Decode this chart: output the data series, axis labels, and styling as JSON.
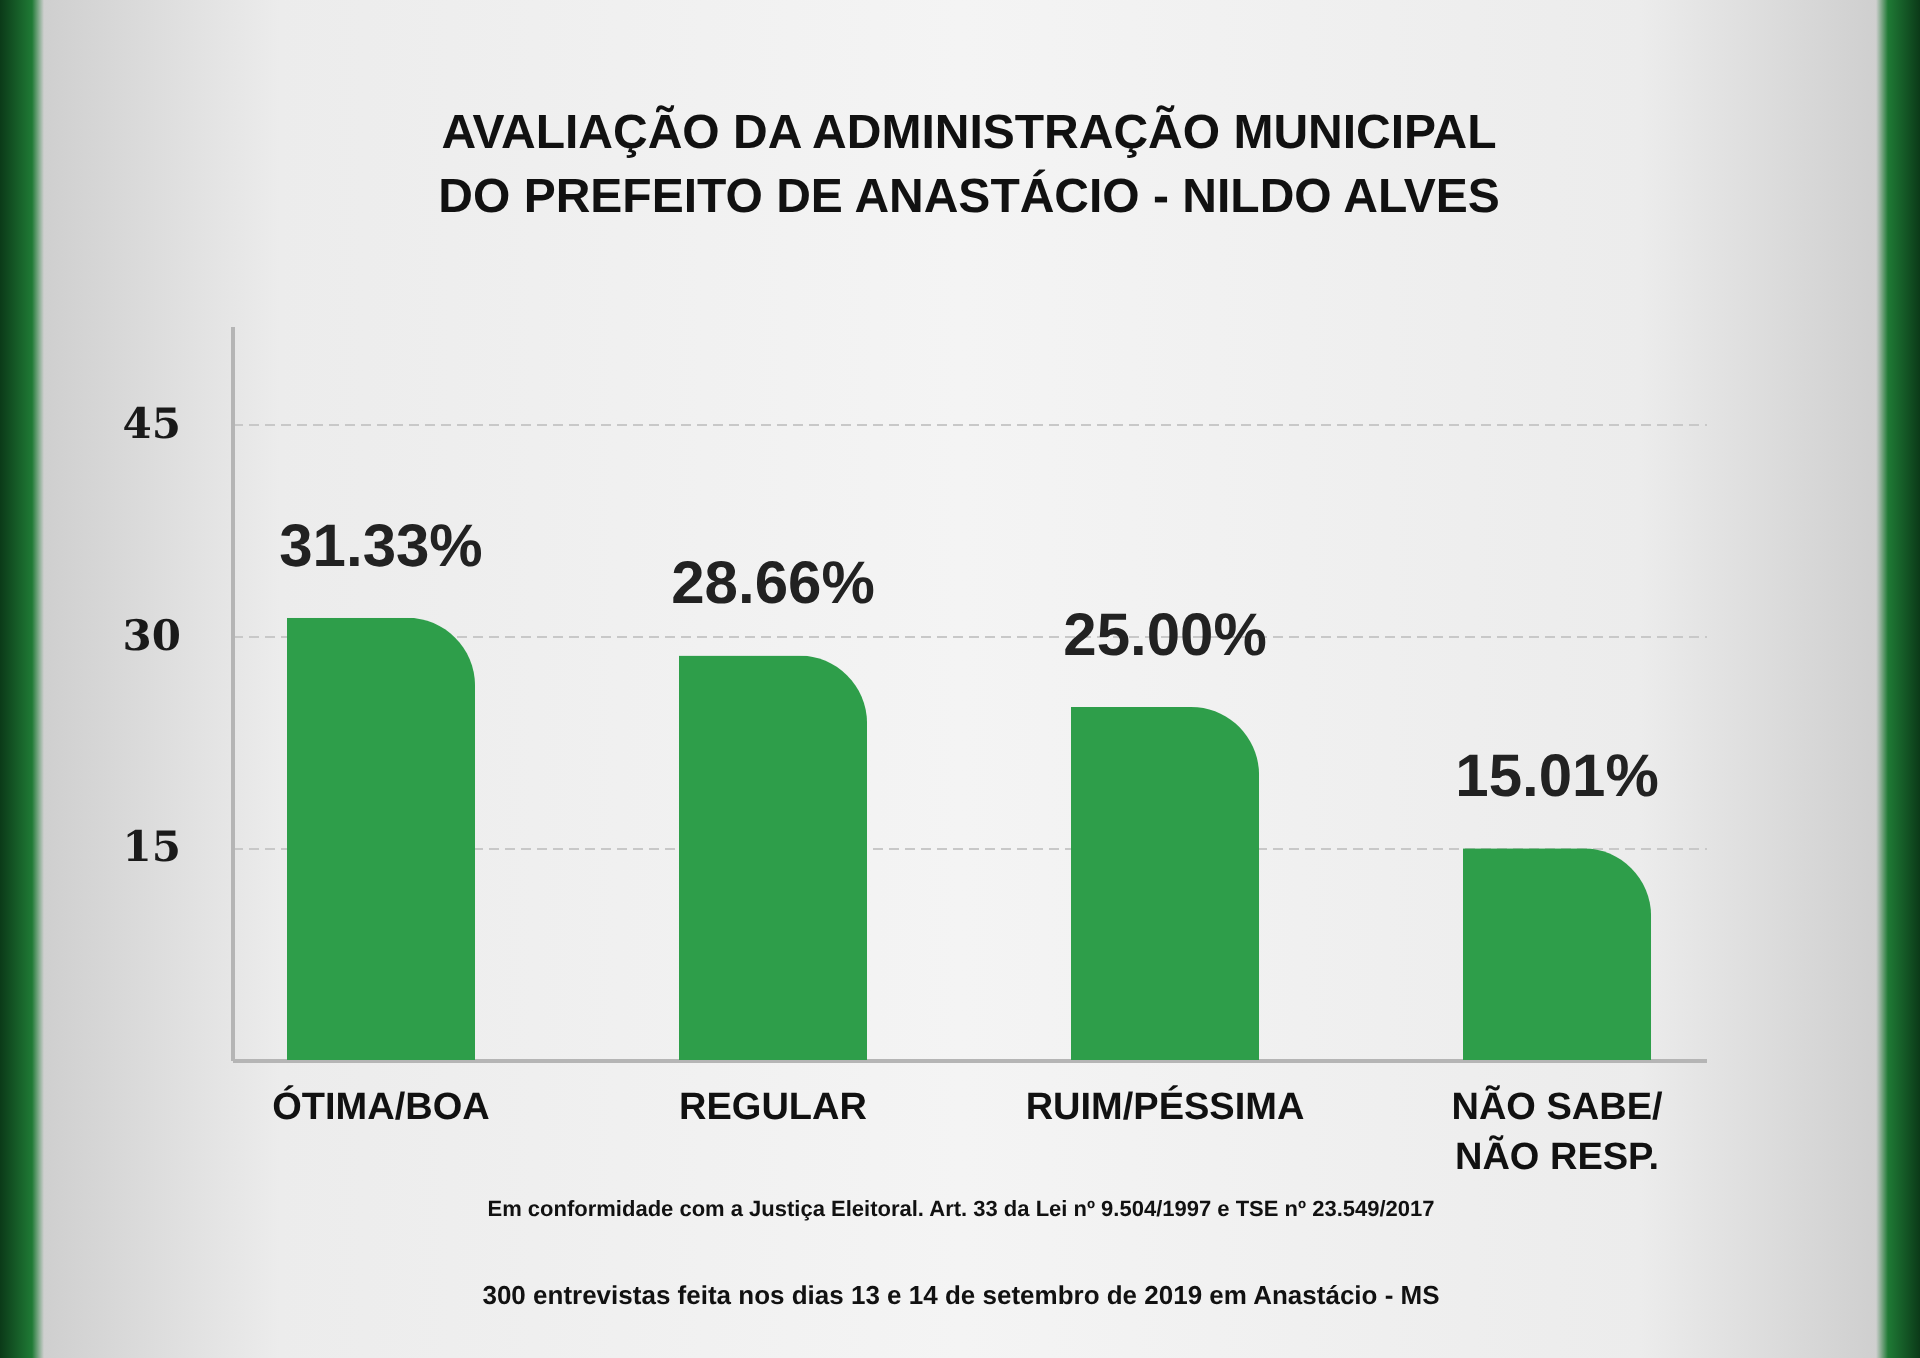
{
  "chart_data": {
    "type": "bar",
    "title": "AVALIAÇÃO DA ADMINISTRAÇÃO MUNICIPAL\nDO PREFEITO DE ANASTÁCIO - NILDO ALVES",
    "categories": [
      "ÓTIMA/BOA",
      "REGULAR",
      "RUIM/PÉSSIMA",
      "NÃO SABE/\nNÃO RESP."
    ],
    "values": [
      31.33,
      28.66,
      25.0,
      15.01
    ],
    "value_labels": [
      "31.33%",
      "28.66%",
      "25.00%",
      "15.01%"
    ],
    "color": "#2e9e4a",
    "ylim": [
      0,
      52
    ],
    "yticks": [
      15,
      30,
      45
    ],
    "grid": "y",
    "annotations": [
      "Em conformidade com a Justiça Eleitoral. Art. 33 da Lei nº 9.504/1997 e TSE nº 23.549/2017",
      "300 entrevistas feita nos dias 13 e 14 de setembro de 2019 em Anastácio - MS"
    ]
  }
}
